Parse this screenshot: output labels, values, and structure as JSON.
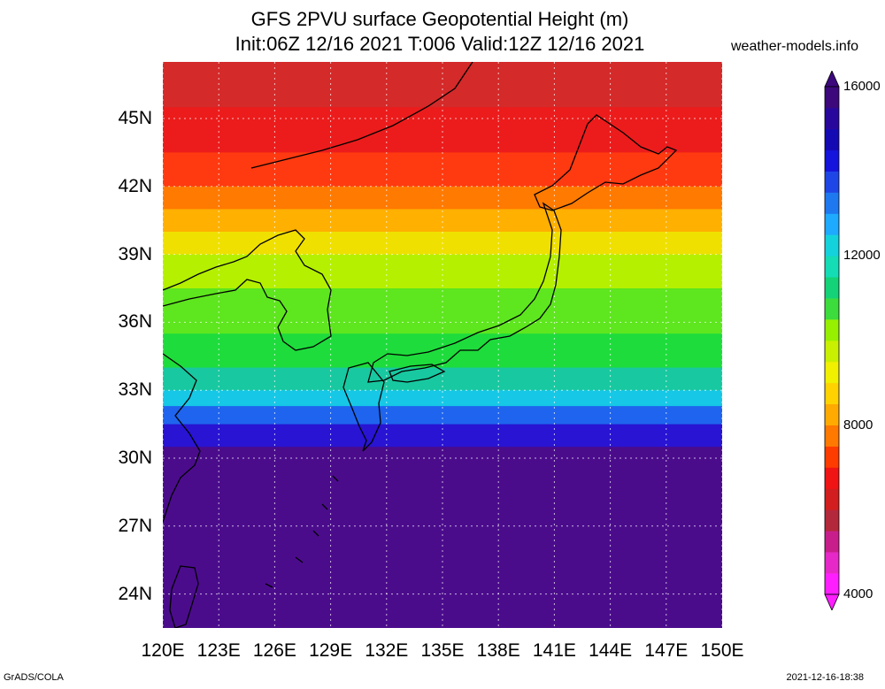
{
  "title": {
    "line1": "GFS 2PVU surface Geopotential Height (m)",
    "line2": "Init:06Z 12/16 2021 T:006 Valid:12Z 12/16 2021"
  },
  "site_label": "weather-models.info",
  "footer": {
    "left": "GrADS/COLA",
    "right": "2021-12-16-18:38"
  },
  "map": {
    "lat_range": [
      22.5,
      47.5
    ],
    "lon_range": [
      120,
      150
    ],
    "lat_ticks": [
      {
        "value": 24,
        "label": "24N"
      },
      {
        "value": 27,
        "label": "27N"
      },
      {
        "value": 30,
        "label": "30N"
      },
      {
        "value": 33,
        "label": "33N"
      },
      {
        "value": 36,
        "label": "36N"
      },
      {
        "value": 39,
        "label": "39N"
      },
      {
        "value": 42,
        "label": "42N"
      },
      {
        "value": 45,
        "label": "45N"
      }
    ],
    "lon_ticks": [
      {
        "value": 120,
        "label": "120E"
      },
      {
        "value": 123,
        "label": "123E"
      },
      {
        "value": 126,
        "label": "126E"
      },
      {
        "value": 129,
        "label": "129E"
      },
      {
        "value": 132,
        "label": "132E"
      },
      {
        "value": 135,
        "label": "135E"
      },
      {
        "value": 138,
        "label": "138E"
      },
      {
        "value": 141,
        "label": "141E"
      },
      {
        "value": 144,
        "label": "144E"
      },
      {
        "value": 147,
        "label": "147E"
      },
      {
        "value": 150,
        "label": "150E"
      }
    ],
    "grid_lines": "dotted",
    "field_bands": [
      {
        "lat_from": 47.5,
        "lat_to": 45.5,
        "color": "#d42a2a"
      },
      {
        "lat_from": 45.5,
        "lat_to": 43.5,
        "color": "#ec1c1c"
      },
      {
        "lat_from": 43.5,
        "lat_to": 42.0,
        "color": "#ff3a10"
      },
      {
        "lat_from": 42.0,
        "lat_to": 41.0,
        "color": "#ff7a00"
      },
      {
        "lat_from": 41.0,
        "lat_to": 40.0,
        "color": "#ffb000"
      },
      {
        "lat_from": 40.0,
        "lat_to": 39.0,
        "color": "#f0e000"
      },
      {
        "lat_from": 39.0,
        "lat_to": 37.5,
        "color": "#b4f000"
      },
      {
        "lat_from": 37.5,
        "lat_to": 35.5,
        "color": "#5ee61e"
      },
      {
        "lat_from": 35.5,
        "lat_to": 34.0,
        "color": "#1edc3c"
      },
      {
        "lat_from": 34.0,
        "lat_to": 33.0,
        "color": "#18c8a0"
      },
      {
        "lat_from": 33.0,
        "lat_to": 32.3,
        "color": "#16c8e6"
      },
      {
        "lat_from": 32.3,
        "lat_to": 31.5,
        "color": "#1e64ee"
      },
      {
        "lat_from": 31.5,
        "lat_to": 30.5,
        "color": "#2814d2"
      },
      {
        "lat_from": 30.5,
        "lat_to": 22.5,
        "color": "#4b0c8c"
      }
    ],
    "coast_color": "#000000"
  },
  "colorbar": {
    "min": 4000,
    "max": 16000,
    "labels": [
      "4000",
      "8000",
      "12000",
      "16000"
    ],
    "colors": [
      "#ff1eff",
      "#e628c8",
      "#c81e8c",
      "#b4283c",
      "#d21e1e",
      "#f01414",
      "#ff3c00",
      "#ff7800",
      "#ffaa00",
      "#ffd200",
      "#f0f000",
      "#c8f000",
      "#96f000",
      "#3cdc3c",
      "#14d278",
      "#14dcb4",
      "#14d2dc",
      "#1eaaff",
      "#1e78f0",
      "#1e46e6",
      "#1414dc",
      "#140ab4",
      "#28089c",
      "#3c087c"
    ]
  }
}
